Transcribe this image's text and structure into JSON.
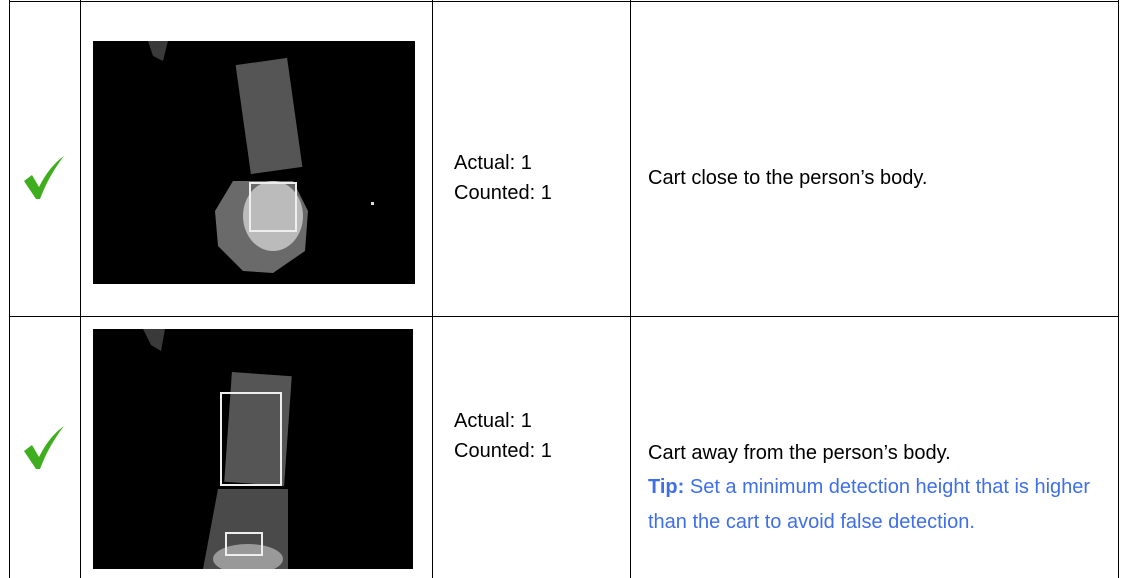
{
  "table": {
    "rows": [
      {
        "actual": "Actual: 1",
        "counted": "Counted: 1",
        "description": "Cart close to the person’s body."
      },
      {
        "actual": "Actual: 1",
        "counted": "Counted: 1",
        "description": "Cart away from the person’s body.",
        "tip_label": "Tip:",
        "tip_text": "Set a minimum detection height that is higher than the cart to avoid false detection."
      }
    ]
  }
}
